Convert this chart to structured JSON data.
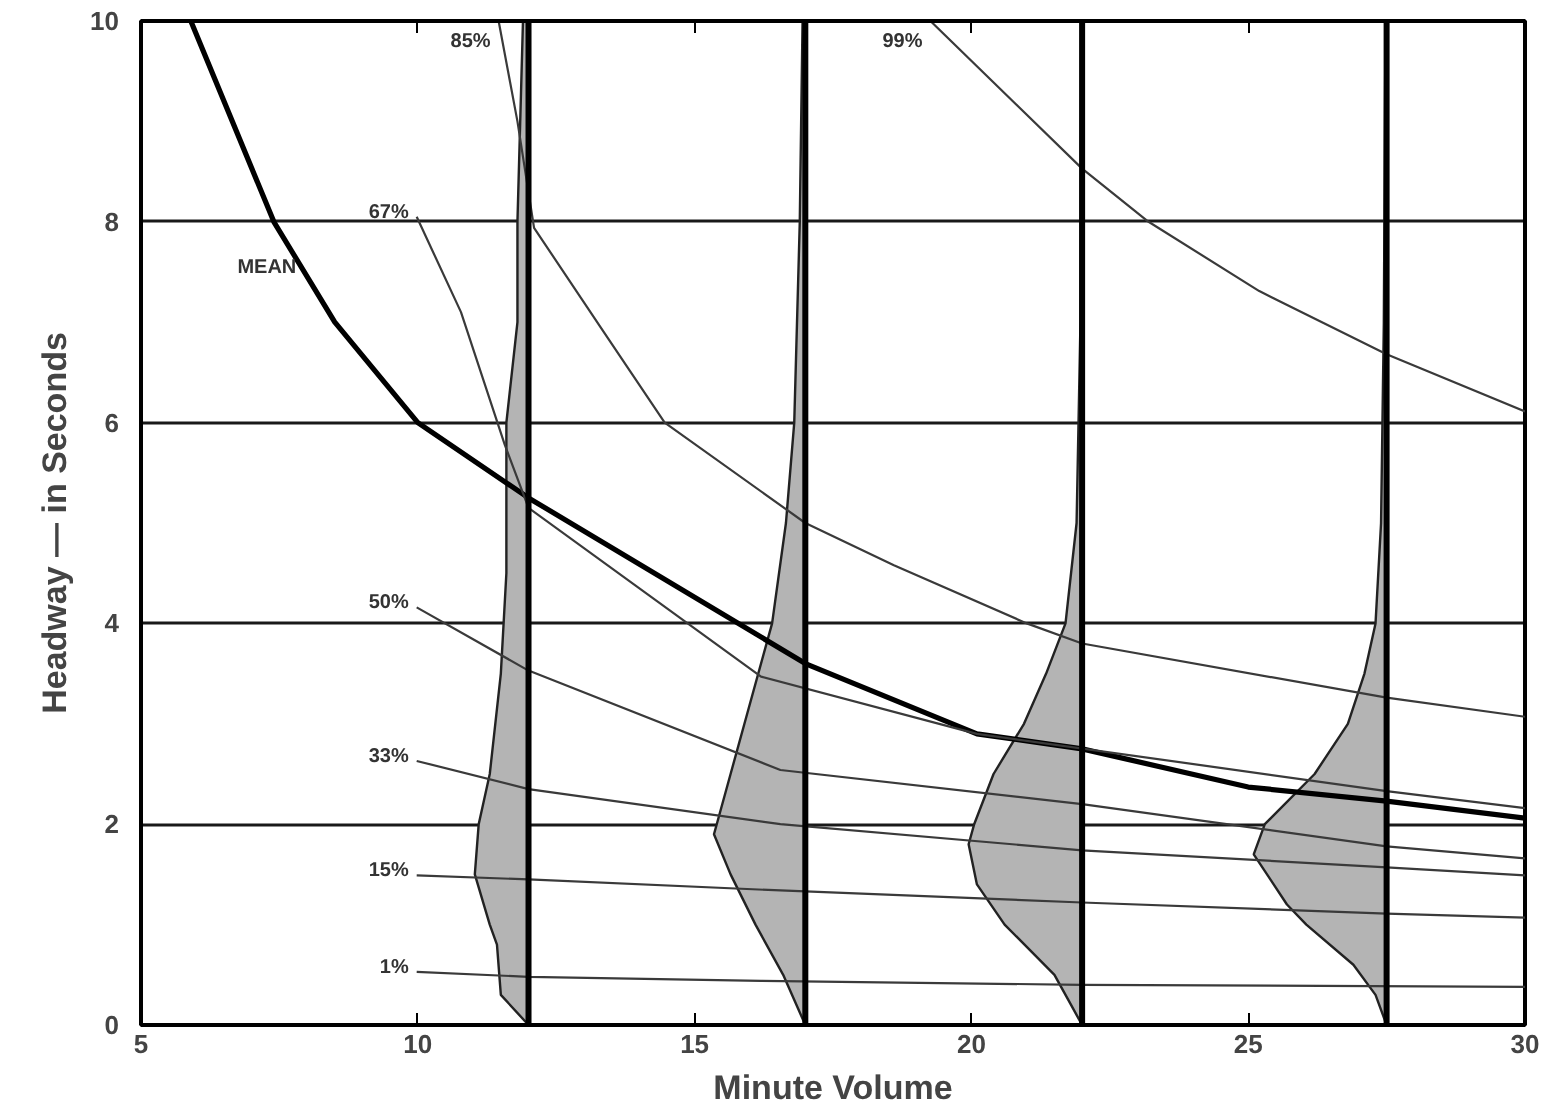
{
  "chart_data": {
    "type": "line",
    "xlabel": "Minute Volume",
    "ylabel": "Headway — in Seconds",
    "xlim": [
      5,
      30
    ],
    "ylim": [
      0,
      10
    ],
    "xticks": [
      5,
      10,
      15,
      20,
      25,
      30
    ],
    "yticks": [
      0,
      2,
      4,
      6,
      8,
      10
    ],
    "grid": "y",
    "series": [
      {
        "type": "area",
        "color": "#b4b4b4",
        "x": [
          12,
          11.5,
          11.43,
          11.3,
          11.03,
          11.1,
          11.3,
          11.5,
          11.6,
          11.6,
          11.8,
          11.8,
          11.85,
          11.9,
          12
        ],
        "values": [
          0,
          0.3,
          0.8,
          1.0,
          1.5,
          2,
          2.5,
          3.5,
          4.5,
          6,
          7,
          8,
          9,
          10,
          10
        ]
      },
      {
        "type": "area",
        "color": "#b4b4b4",
        "x": [
          17,
          16.6,
          16.1,
          15.65,
          15.35,
          15.4,
          15.65,
          15.9,
          16.4,
          16.65,
          16.8,
          16.9,
          16.95,
          17
        ],
        "values": [
          0,
          0.5,
          1,
          1.5,
          1.9,
          2,
          2.5,
          3,
          4,
          5,
          6,
          8,
          10,
          10
        ]
      },
      {
        "type": "area",
        "color": "#b4b4b4",
        "x": [
          22,
          21.8,
          21.5,
          20.6,
          20.1,
          19.95,
          20.05,
          20.4,
          20.95,
          21.35,
          21.7,
          21.9,
          21.97,
          21.98,
          22
        ],
        "values": [
          0,
          0.2,
          0.5,
          1,
          1.4,
          1.8,
          2,
          2.5,
          3,
          3.5,
          4,
          5,
          7,
          10,
          10
        ]
      },
      {
        "type": "area",
        "color": "#b4b4b4",
        "x": [
          27.5,
          27.3,
          26.9,
          26.05,
          25.7,
          25.1,
          25.3,
          26.2,
          26.8,
          27.1,
          27.3,
          27.4,
          27.45,
          27.48,
          27.5
        ],
        "values": [
          0,
          0.3,
          0.6,
          1,
          1.2,
          1.7,
          2,
          2.5,
          3,
          3.5,
          4,
          5,
          7,
          10,
          10
        ]
      },
      {
        "color": "#000000",
        "x": [
          5.9,
          7.4,
          8.5,
          10,
          12,
          17,
          20.1,
          22,
          25,
          27.5,
          30
        ],
        "values": [
          10,
          8,
          7,
          6,
          5.25,
          3.6,
          2.9,
          2.75,
          2.37,
          2.23,
          2.06
        ]
      },
      {
        "color": "#3a3a3a",
        "x": [
          11.46,
          11.8,
          12.1,
          13.3,
          14.46,
          17,
          18.6,
          21,
          22,
          27.5,
          30
        ],
        "values": [
          10,
          9,
          7.94,
          6.95,
          6,
          5.0,
          4.58,
          4,
          3.8,
          3.26,
          3.07
        ]
      },
      {
        "color": "#3a3a3a",
        "x": [
          19.26,
          22,
          23.2,
          25.2,
          27.5,
          30
        ],
        "values": [
          10,
          8.53,
          8,
          7.31,
          6.68,
          6.11
        ]
      },
      {
        "color": "#3a3a3a",
        "x": [
          9.98,
          10.78,
          11.57,
          12,
          16.2,
          20.1,
          27.5,
          30
        ],
        "values": [
          8.05,
          7.1,
          5.78,
          5.15,
          3.47,
          2.9,
          2.33,
          2.16
        ]
      },
      {
        "color": "#3a3a3a",
        "x": [
          9.98,
          12,
          16.55,
          22,
          27.5,
          30
        ],
        "values": [
          4.16,
          3.53,
          2.54,
          2.2,
          1.78,
          1.66
        ]
      },
      {
        "color": "#3a3a3a",
        "x": [
          9.98,
          12,
          16.55,
          22,
          27.5,
          30
        ],
        "values": [
          2.63,
          2.35,
          2.0,
          1.74,
          1.57,
          1.49
        ]
      },
      {
        "color": "#3a3a3a",
        "x": [
          9.98,
          12,
          16.55,
          22,
          27.5,
          30
        ],
        "values": [
          1.49,
          1.45,
          1.34,
          1.22,
          1.11,
          1.07
        ]
      },
      {
        "color": "#3a3a3a",
        "x": [
          9.98,
          12,
          16.2,
          22,
          30
        ],
        "values": [
          0.53,
          0.48,
          0.44,
          0.4,
          0.38
        ]
      }
    ],
    "ref_lines": [
      {
        "axis": "x",
        "value": 12,
        "color": "#000000"
      },
      {
        "axis": "x",
        "value": 17,
        "color": "#000000"
      },
      {
        "axis": "x",
        "value": 22,
        "color": "#000000"
      },
      {
        "axis": "x",
        "value": 27.5,
        "color": "#000000"
      }
    ],
    "annotations": [
      {
        "text": "85%",
        "x": 11.46,
        "y": 10
      },
      {
        "text": "99%",
        "x": 19.26,
        "y": 10
      },
      {
        "text": "67%",
        "x": 9.98,
        "y": 8.05
      },
      {
        "text": "MEAN",
        "x": 7.95,
        "y": 7.5
      },
      {
        "text": "50%",
        "x": 9.98,
        "y": 4.16
      },
      {
        "text": "33%",
        "x": 9.98,
        "y": 2.63
      },
      {
        "text": "15%",
        "x": 9.98,
        "y": 1.49
      },
      {
        "text": "1%",
        "x": 9.98,
        "y": 0.53
      }
    ]
  }
}
